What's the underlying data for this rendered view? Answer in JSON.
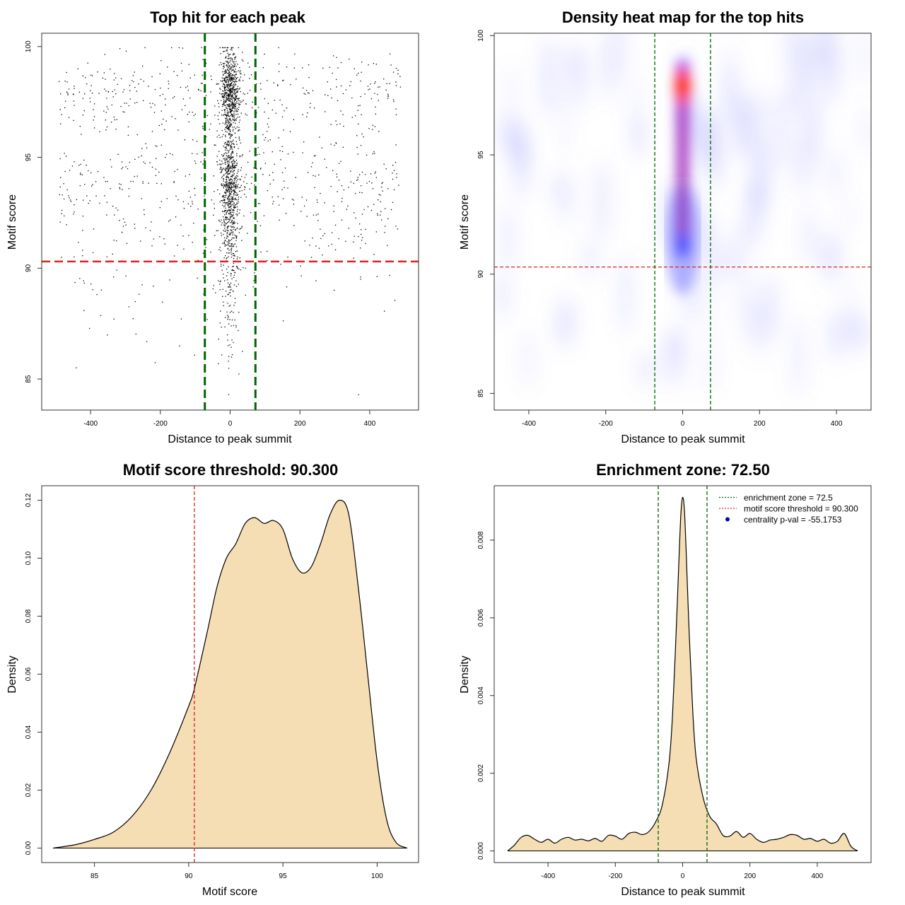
{
  "chart_data": [
    {
      "id": "scatter",
      "type": "scatter",
      "title": "Top hit for each peak",
      "xlabel": "Distance to peak summit",
      "ylabel": "Motif score",
      "xlim": [
        -540,
        540
      ],
      "ylim": [
        83.6,
        100.6
      ],
      "xticks": [
        -400,
        -200,
        0,
        200,
        400
      ],
      "yticks": [
        85,
        90,
        95,
        100
      ],
      "xtick_labels": [
        "-400",
        "-200",
        "0",
        "200",
        "400"
      ],
      "ytick_labels": [
        "85",
        "90",
        "95",
        "100"
      ],
      "threshold": 90.3,
      "zone": 72.5,
      "point_count_estimate": 2400,
      "colors": {
        "points": "#000000",
        "threshold": "#dd2222",
        "zone": "#006400"
      }
    },
    {
      "id": "heatmap",
      "type": "heatmap",
      "title": "Density heat map for the top hits",
      "xlabel": "Distance to peak summit",
      "ylabel": "Motif score",
      "xlim": [
        -490,
        490
      ],
      "ylim": [
        84.3,
        100.1
      ],
      "xticks": [
        -400,
        -200,
        0,
        200,
        400
      ],
      "yticks": [
        85,
        90,
        95,
        100
      ],
      "xtick_labels": [
        "-400",
        "-200",
        "0",
        "200",
        "400"
      ],
      "ytick_labels": [
        "85",
        "90",
        "95",
        "100"
      ],
      "threshold": 90.3,
      "zone": 72.5,
      "colors": {
        "low": "#ffffff",
        "mid": "#0000ff",
        "high": "#ff0000",
        "threshold": "#dd2222",
        "zone": "#006400"
      }
    },
    {
      "id": "score-density",
      "type": "area",
      "title": "Motif score threshold: 90.300",
      "xlabel": "Motif score",
      "ylabel": "Density",
      "xlim": [
        82.2,
        102.2
      ],
      "ylim": [
        -0.005,
        0.125
      ],
      "xticks": [
        85,
        90,
        95,
        100
      ],
      "yticks": [
        0.0,
        0.02,
        0.04,
        0.06,
        0.08,
        0.1,
        0.12
      ],
      "xtick_labels": [
        "85",
        "90",
        "95",
        "100"
      ],
      "ytick_labels": [
        "0.00",
        "0.02",
        "0.04",
        "0.06",
        "0.08",
        "0.10",
        "0.12"
      ],
      "threshold": 90.3,
      "x": [
        82.8,
        84,
        85,
        86,
        87,
        88,
        89,
        90,
        90.3,
        91,
        91.5,
        92,
        92.5,
        93,
        93.5,
        94,
        94.5,
        95,
        95.5,
        96,
        96.5,
        97,
        97.5,
        98,
        98.5,
        99,
        99.5,
        100,
        100.5,
        101,
        101.6
      ],
      "y": [
        0.0,
        0.0012,
        0.003,
        0.0055,
        0.011,
        0.02,
        0.033,
        0.049,
        0.055,
        0.075,
        0.09,
        0.1,
        0.105,
        0.112,
        0.114,
        0.112,
        0.113,
        0.11,
        0.1,
        0.095,
        0.097,
        0.105,
        0.115,
        0.12,
        0.115,
        0.09,
        0.06,
        0.03,
        0.01,
        0.002,
        0.0
      ],
      "colors": {
        "fill": "#f5deb3",
        "line": "#000000",
        "threshold": "#dd2222"
      }
    },
    {
      "id": "distance-density",
      "type": "area",
      "title": "Enrichment zone: 72.50",
      "xlabel": "Distance to peak summit",
      "ylabel": "Density",
      "xlim": [
        -560,
        560
      ],
      "ylim": [
        -0.0003,
        0.0094
      ],
      "xticks": [
        -400,
        -200,
        0,
        200,
        400
      ],
      "yticks": [
        0.0,
        0.002,
        0.004,
        0.006,
        0.008
      ],
      "xtick_labels": [
        "-400",
        "-200",
        "0",
        "200",
        "400"
      ],
      "ytick_labels": [
        "0.000",
        "0.002",
        "0.004",
        "0.006",
        "0.008"
      ],
      "zone": 72.5,
      "x": [
        -520,
        -500,
        -480,
        -460,
        -440,
        -420,
        -400,
        -380,
        -360,
        -340,
        -320,
        -300,
        -280,
        -260,
        -240,
        -220,
        -200,
        -180,
        -160,
        -140,
        -120,
        -100,
        -80,
        -60,
        -40,
        -30,
        -20,
        -10,
        -5,
        0,
        5,
        10,
        20,
        30,
        40,
        60,
        80,
        100,
        120,
        140,
        160,
        180,
        200,
        220,
        240,
        260,
        280,
        300,
        320,
        340,
        360,
        380,
        400,
        420,
        440,
        460,
        480,
        500,
        520
      ],
      "y": [
        0.0,
        0.00015,
        0.00035,
        0.0004,
        0.0003,
        0.00022,
        0.0003,
        0.0002,
        0.0003,
        0.00035,
        0.00028,
        0.0003,
        0.00026,
        0.00032,
        0.00025,
        0.0004,
        0.00038,
        0.0003,
        0.00045,
        0.00048,
        0.00042,
        0.0005,
        0.00075,
        0.0012,
        0.0023,
        0.0035,
        0.0055,
        0.0077,
        0.0087,
        0.0091,
        0.0088,
        0.0078,
        0.0055,
        0.0036,
        0.0024,
        0.0014,
        0.0009,
        0.0007,
        0.0004,
        0.00038,
        0.0005,
        0.00035,
        0.00045,
        0.0003,
        0.00022,
        0.00028,
        0.0003,
        0.00035,
        0.00042,
        0.0004,
        0.0003,
        0.00032,
        0.00025,
        0.0003,
        0.0002,
        0.00025,
        0.00045,
        0.00012,
        0.0
      ],
      "legend": {
        "position": "top-right",
        "items": [
          {
            "label": "enrichment zone = 72.5",
            "style": "dotted-line",
            "color": "#006400"
          },
          {
            "label": "motif score threshold = 90.300",
            "style": "dotted-line",
            "color": "#dd2222"
          },
          {
            "label": "centrality p-val = -55.1753",
            "style": "point",
            "color": "#0000cc"
          }
        ]
      },
      "colors": {
        "fill": "#f5deb3",
        "line": "#000000",
        "zone": "#006400"
      }
    }
  ]
}
